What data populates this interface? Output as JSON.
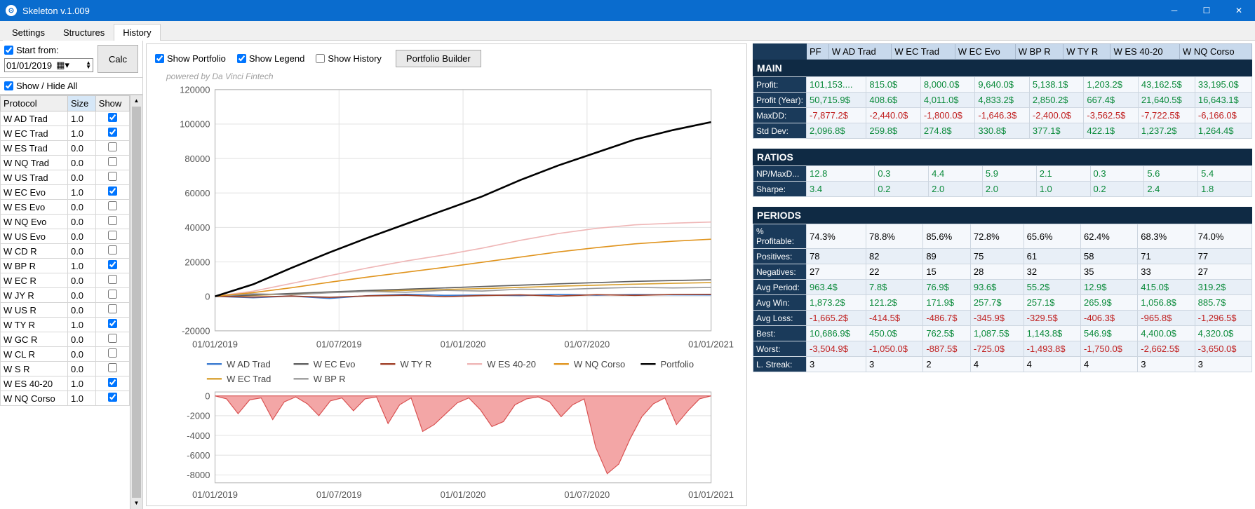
{
  "window": {
    "title": "Skeleton v.1.009"
  },
  "tabs": {
    "items": [
      "Settings",
      "Structures",
      "History"
    ],
    "active": 2
  },
  "left": {
    "startFrom": {
      "label": "Start from:",
      "checked": true,
      "date": "01/01/2019"
    },
    "calc": "Calc",
    "showHideAll": {
      "label": "Show / Hide All",
      "checked": true
    },
    "gridHeaders": [
      "Protocol",
      "Size",
      "Show"
    ],
    "sortedCol": 1,
    "rows": [
      {
        "name": "W AD Trad",
        "size": "1.0",
        "show": true
      },
      {
        "name": "W EC Trad",
        "size": "1.0",
        "show": true
      },
      {
        "name": "W ES Trad",
        "size": "0.0",
        "show": false
      },
      {
        "name": "W NQ Trad",
        "size": "0.0",
        "show": false
      },
      {
        "name": "W US Trad",
        "size": "0.0",
        "show": false
      },
      {
        "name": "W EC Evo",
        "size": "1.0",
        "show": true
      },
      {
        "name": "W ES Evo",
        "size": "0.0",
        "show": false
      },
      {
        "name": "W NQ Evo",
        "size": "0.0",
        "show": false
      },
      {
        "name": "W US Evo",
        "size": "0.0",
        "show": false
      },
      {
        "name": "W CD R",
        "size": "0.0",
        "show": false
      },
      {
        "name": "W BP R",
        "size": "1.0",
        "show": true
      },
      {
        "name": "W EC R",
        "size": "0.0",
        "show": false
      },
      {
        "name": "W JY R",
        "size": "0.0",
        "show": false
      },
      {
        "name": "W US R",
        "size": "0.0",
        "show": false
      },
      {
        "name": "W TY R",
        "size": "1.0",
        "show": true
      },
      {
        "name": "W GC R",
        "size": "0.0",
        "show": false
      },
      {
        "name": "W CL R",
        "size": "0.0",
        "show": false
      },
      {
        "name": "W S R",
        "size": "0.0",
        "show": false
      },
      {
        "name": "W ES 40-20",
        "size": "1.0",
        "show": true
      },
      {
        "name": "W NQ Corso",
        "size": "1.0",
        "show": true
      }
    ]
  },
  "chart": {
    "controls": {
      "showPortfolio": {
        "label": "Show Portfolio",
        "checked": true
      },
      "showLegend": {
        "label": "Show Legend",
        "checked": true
      },
      "showHistory": {
        "label": "Show History",
        "checked": false
      },
      "builder": "Portfolio Builder"
    },
    "powered": "powered by Da Vinci Fintech",
    "equity": {
      "yticks": [
        -20000,
        0,
        20000,
        40000,
        60000,
        80000,
        100000,
        120000
      ],
      "ylim": [
        -20000,
        120000
      ],
      "xticks": [
        "01/01/2019",
        "01/07/2019",
        "01/01/2020",
        "01/07/2020",
        "01/01/2021"
      ],
      "gridColor": "#e6e6e6",
      "axisColor": "#888",
      "series": [
        {
          "name": "W AD Trad",
          "color": "#3a7ad0",
          "data": [
            0,
            -800,
            200,
            -1200,
            400,
            1200,
            600,
            800,
            500,
            1200,
            700,
            1100,
            900,
            815
          ]
        },
        {
          "name": "W EC Trad",
          "color": "#d8a030",
          "data": [
            0,
            600,
            1400,
            2200,
            2900,
            3500,
            4000,
            4500,
            5200,
            5900,
            6500,
            7100,
            7600,
            8000
          ]
        },
        {
          "name": "W EC Evo",
          "color": "#606060",
          "data": [
            0,
            800,
            1700,
            2600,
            3400,
            4200,
            4900,
            5700,
            6500,
            7300,
            8000,
            8700,
            9200,
            9640
          ]
        },
        {
          "name": "W BP R",
          "color": "#9a9a9a",
          "data": [
            0,
            1500,
            900,
            2100,
            2800,
            2400,
            3500,
            3100,
            4200,
            3900,
            4700,
            5200,
            4900,
            5138
          ]
        },
        {
          "name": "W TY R",
          "color": "#a04028",
          "data": [
            0,
            -400,
            200,
            -600,
            300,
            700,
            -200,
            500,
            900,
            200,
            1000,
            600,
            1100,
            1203
          ]
        },
        {
          "name": "W ES 40-20",
          "color": "#efb6b6",
          "data": [
            0,
            3000,
            7500,
            12000,
            16500,
            20500,
            24000,
            28000,
            32500,
            36500,
            39500,
            41500,
            42500,
            43162
          ]
        },
        {
          "name": "W NQ Corso",
          "color": "#e0941e",
          "data": [
            0,
            2200,
            5000,
            8200,
            11200,
            14000,
            16800,
            19800,
            22800,
            25800,
            28300,
            30500,
            32000,
            33195
          ]
        },
        {
          "name": "Portfolio",
          "color": "#000000",
          "width": 2.2,
          "data": [
            0,
            7000,
            16500,
            25500,
            34000,
            42000,
            50000,
            58000,
            67500,
            76000,
            83500,
            91000,
            96500,
            101153
          ]
        }
      ]
    },
    "legend": [
      {
        "name": "W AD Trad",
        "color": "#3a7ad0"
      },
      {
        "name": "W EC Evo",
        "color": "#606060"
      },
      {
        "name": "W TY R",
        "color": "#a04028"
      },
      {
        "name": "W ES 40-20",
        "color": "#efb6b6"
      },
      {
        "name": "W NQ Corso",
        "color": "#e0941e"
      },
      {
        "name": "Portfolio",
        "color": "#000000"
      },
      {
        "name": "W EC Trad",
        "color": "#d8a030"
      },
      {
        "name": "W BP R",
        "color": "#9a9a9a"
      }
    ],
    "drawdown": {
      "yticks": [
        -8000,
        -6000,
        -4000,
        -2000,
        0
      ],
      "ylim": [
        -8800,
        400
      ],
      "xticks": [
        "01/01/2019",
        "01/07/2019",
        "01/01/2020",
        "01/07/2020",
        "01/01/2021"
      ],
      "fillColor": "#f3a6a6",
      "lineColor": "#d85050",
      "data": [
        0,
        -300,
        -1800,
        -400,
        -200,
        -2400,
        -600,
        -100,
        -800,
        -2000,
        -500,
        -200,
        -1500,
        -300,
        -100,
        -2800,
        -900,
        -200,
        -3600,
        -2900,
        -1800,
        -700,
        -200,
        -1400,
        -3100,
        -2600,
        -900,
        -300,
        -100,
        -600,
        -2100,
        -900,
        -300,
        -5200,
        -7877,
        -6900,
        -4300,
        -2100,
        -800,
        -200,
        -2900,
        -1500,
        -300,
        0
      ]
    }
  },
  "stats": {
    "columns": [
      "",
      "PF",
      "W AD Trad",
      "W EC Trad",
      "W EC Evo",
      "W BP R",
      "W TY R",
      "W ES 40-20",
      "W NQ Corso"
    ],
    "sections": [
      {
        "title": "MAIN",
        "rows": [
          {
            "label": "Profit:",
            "vals": [
              "101,153....",
              "815.0$",
              "8,000.0$",
              "9,640.0$",
              "5,138.1$",
              "1,203.2$",
              "43,162.5$",
              "33,195.0$"
            ],
            "cls": [
              "pos",
              "pos",
              "pos",
              "pos",
              "pos",
              "pos",
              "pos",
              "pos"
            ]
          },
          {
            "label": "Profit (Year):",
            "vals": [
              "50,715.9$",
              "408.6$",
              "4,011.0$",
              "4,833.2$",
              "2,850.2$",
              "667.4$",
              "21,640.5$",
              "16,643.1$"
            ],
            "cls": [
              "pos",
              "pos",
              "pos",
              "pos",
              "pos",
              "pos",
              "pos",
              "pos"
            ]
          },
          {
            "label": "MaxDD:",
            "vals": [
              "-7,877.2$",
              "-2,440.0$",
              "-1,800.0$",
              "-1,646.3$",
              "-2,400.0$",
              "-3,562.5$",
              "-7,722.5$",
              "-6,166.0$"
            ],
            "cls": [
              "neg",
              "neg",
              "neg",
              "neg",
              "neg",
              "neg",
              "neg",
              "neg"
            ]
          },
          {
            "label": "Std Dev:",
            "vals": [
              "2,096.8$",
              "259.8$",
              "274.8$",
              "330.8$",
              "377.1$",
              "422.1$",
              "1,237.2$",
              "1,264.4$"
            ],
            "cls": [
              "pos",
              "pos",
              "pos",
              "pos",
              "pos",
              "pos",
              "pos",
              "pos"
            ]
          }
        ]
      },
      {
        "title": "RATIOS",
        "rows": [
          {
            "label": "NP/MaxD...",
            "vals": [
              "12.8",
              "0.3",
              "4.4",
              "5.9",
              "2.1",
              "0.3",
              "5.6",
              "5.4"
            ],
            "cls": [
              "pos",
              "pos",
              "pos",
              "pos",
              "pos",
              "pos",
              "pos",
              "pos"
            ]
          },
          {
            "label": "Sharpe:",
            "vals": [
              "3.4",
              "0.2",
              "2.0",
              "2.0",
              "1.0",
              "0.2",
              "2.4",
              "1.8"
            ],
            "cls": [
              "pos",
              "pos",
              "pos",
              "pos",
              "pos",
              "pos",
              "pos",
              "pos"
            ]
          }
        ]
      },
      {
        "title": "PERIODS",
        "rows": [
          {
            "label": "% Profitable:",
            "vals": [
              "74.3%",
              "78.8%",
              "85.6%",
              "72.8%",
              "65.6%",
              "62.4%",
              "68.3%",
              "74.0%"
            ],
            "cls": [
              "",
              "",
              "",
              "",
              "",
              "",
              "",
              ""
            ]
          },
          {
            "label": "Positives:",
            "vals": [
              "78",
              "82",
              "89",
              "75",
              "61",
              "58",
              "71",
              "77"
            ],
            "cls": [
              "",
              "",
              "",
              "",
              "",
              "",
              "",
              ""
            ]
          },
          {
            "label": "Negatives:",
            "vals": [
              "27",
              "22",
              "15",
              "28",
              "32",
              "35",
              "33",
              "27"
            ],
            "cls": [
              "",
              "",
              "",
              "",
              "",
              "",
              "",
              ""
            ]
          },
          {
            "label": "Avg Period:",
            "vals": [
              "963.4$",
              "7.8$",
              "76.9$",
              "93.6$",
              "55.2$",
              "12.9$",
              "415.0$",
              "319.2$"
            ],
            "cls": [
              "pos",
              "pos",
              "pos",
              "pos",
              "pos",
              "pos",
              "pos",
              "pos"
            ]
          },
          {
            "label": "Avg Win:",
            "vals": [
              "1,873.2$",
              "121.2$",
              "171.9$",
              "257.7$",
              "257.1$",
              "265.9$",
              "1,056.8$",
              "885.7$"
            ],
            "cls": [
              "pos",
              "pos",
              "pos",
              "pos",
              "pos",
              "pos",
              "pos",
              "pos"
            ]
          },
          {
            "label": "Avg Loss:",
            "vals": [
              "-1,665.2$",
              "-414.5$",
              "-486.7$",
              "-345.9$",
              "-329.5$",
              "-406.3$",
              "-965.8$",
              "-1,296.5$"
            ],
            "cls": [
              "neg",
              "neg",
              "neg",
              "neg",
              "neg",
              "neg",
              "neg",
              "neg"
            ]
          },
          {
            "label": "Best:",
            "vals": [
              "10,686.9$",
              "450.0$",
              "762.5$",
              "1,087.5$",
              "1,143.8$",
              "546.9$",
              "4,400.0$",
              "4,320.0$"
            ],
            "cls": [
              "pos",
              "pos",
              "pos",
              "pos",
              "pos",
              "pos",
              "pos",
              "pos"
            ]
          },
          {
            "label": "Worst:",
            "vals": [
              "-3,504.9$",
              "-1,050.0$",
              "-887.5$",
              "-725.0$",
              "-1,493.8$",
              "-1,750.0$",
              "-2,662.5$",
              "-3,650.0$"
            ],
            "cls": [
              "neg",
              "neg",
              "neg",
              "neg",
              "neg",
              "neg",
              "neg",
              "neg"
            ]
          },
          {
            "label": "L. Streak:",
            "vals": [
              "3",
              "3",
              "2",
              "4",
              "4",
              "4",
              "3",
              "3"
            ],
            "cls": [
              "",
              "",
              "",
              "",
              "",
              "",
              "",
              ""
            ]
          }
        ]
      }
    ]
  }
}
